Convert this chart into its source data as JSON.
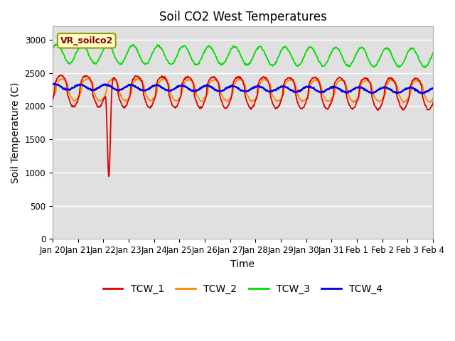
{
  "title": "Soil CO2 West Temperatures",
  "xlabel": "Time",
  "ylabel": "Soil Temperature (C)",
  "ylim": [
    0,
    3200
  ],
  "yticks": [
    0,
    500,
    1000,
    1500,
    2000,
    2500,
    3000
  ],
  "vr_label": "VR_soilco2",
  "legend_labels": [
    "TCW_1",
    "TCW_2",
    "TCW_3",
    "TCW_4"
  ],
  "colors": {
    "TCW_1": "#dd0000",
    "TCW_2": "#ff8800",
    "TCW_3": "#00dd00",
    "TCW_4": "#0000ee"
  },
  "plot_bg": "#e0e0e0",
  "fig_bg": "#ffffff",
  "grid_color": "#ffffff",
  "xtick_labels": [
    "Jan 20",
    "Jan 21",
    "Jan 22",
    "Jan 23",
    "Jan 24",
    "Jan 25",
    "Jan 26",
    "Jan 27",
    "Jan 28",
    "Jan 29",
    "Jan 30",
    "Jan 31",
    "Feb 1",
    "Feb 2",
    "Feb 3",
    "Feb 4"
  ]
}
